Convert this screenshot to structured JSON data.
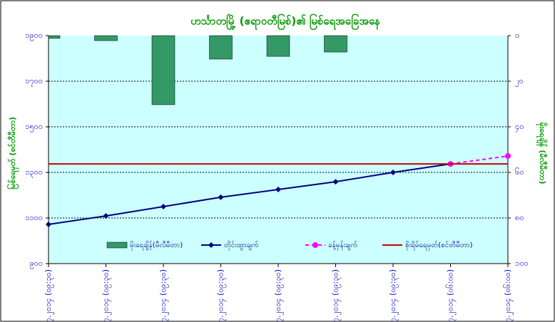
{
  "chart_data": {
    "type": "combo",
    "title": "ဟင်္သာတမြို့ (ဧရာဝတီမြစ်)၏ မြစ်ရေအခြေအနေ",
    "y_label": "မြစ်ရေမှတ် (စင်တီမီတာ)",
    "y2_label": "မိုးရေချိန် (မီလီမီတာ)",
    "categories": [
      "၇.၇.၂၀၁၄ (၀၉:၃၀)",
      "၈.၇.၂၀၁၄ (၀၉:၃၀)",
      "၉.၇.၂၀၁၄ (၀၉:၃၀)",
      "၁၀.၇.၂၀၁၄ (၀၉:၃၀)",
      "၁၁.၇.၂၀၁၄ (၀၉:၃၀)",
      "၁၂.၇.၂၀၁၄ (၀၉:၃၀)",
      "၁၃.၇.၂၀၁၄ (၀၉:၃၀)",
      "၁၄.၇.၂၀၁၄ (၀၆:၀၀)",
      "၁၅.၇.၂၀၁၄ (၀၆:၀၀)"
    ],
    "ylim": [
      900,
      1900
    ],
    "yticks": [
      {
        "value": 900,
        "label": "၉၀၀"
      },
      {
        "value": 1100,
        "label": "၁၁၀၀"
      },
      {
        "value": 1300,
        "label": "၁၃၀၀"
      },
      {
        "value": 1500,
        "label": "၁၅၀၀"
      },
      {
        "value": 1700,
        "label": "၁၇၀၀"
      },
      {
        "value": 1900,
        "label": "၁၉၀၀"
      }
    ],
    "y2lim": [
      100,
      0
    ],
    "y2ticks": [
      {
        "value": 0,
        "label": "၀"
      },
      {
        "value": 20,
        "label": "၂၀"
      },
      {
        "value": 40,
        "label": "၄၀"
      },
      {
        "value": 60,
        "label": "၆၀"
      },
      {
        "value": 80,
        "label": "၈၀"
      },
      {
        "value": 100,
        "label": "၁၀၀"
      }
    ],
    "grid": true,
    "legend": "bottom",
    "series": [
      {
        "name": "မိုးရေချိန်(မီလီမီတာ)",
        "type": "bar",
        "axis": "y2",
        "color": "#339966",
        "values": [
          1.2,
          2.2,
          30.3,
          10.3,
          9.1,
          7.2,
          null,
          null,
          null
        ]
      },
      {
        "name": "တိုင်းထွာချက်",
        "type": "line",
        "color": "#000080",
        "values": [
          1072,
          1109,
          1150,
          1191,
          1225,
          1259,
          1300,
          1337,
          null
        ]
      },
      {
        "name": "ခန့်မှန်းချက်",
        "type": "dashed",
        "color": "#ff00ff",
        "values": [
          null,
          null,
          null,
          null,
          null,
          null,
          null,
          1337,
          1372
        ]
      },
      {
        "name": "စိုးရိမ်ရေမှတ်(စင်တီမီတာ)",
        "type": "hline",
        "color": "#cc0000",
        "values": [
          1337,
          1337,
          1337,
          1337,
          1337,
          1337,
          1337,
          1337,
          1337
        ]
      }
    ]
  }
}
